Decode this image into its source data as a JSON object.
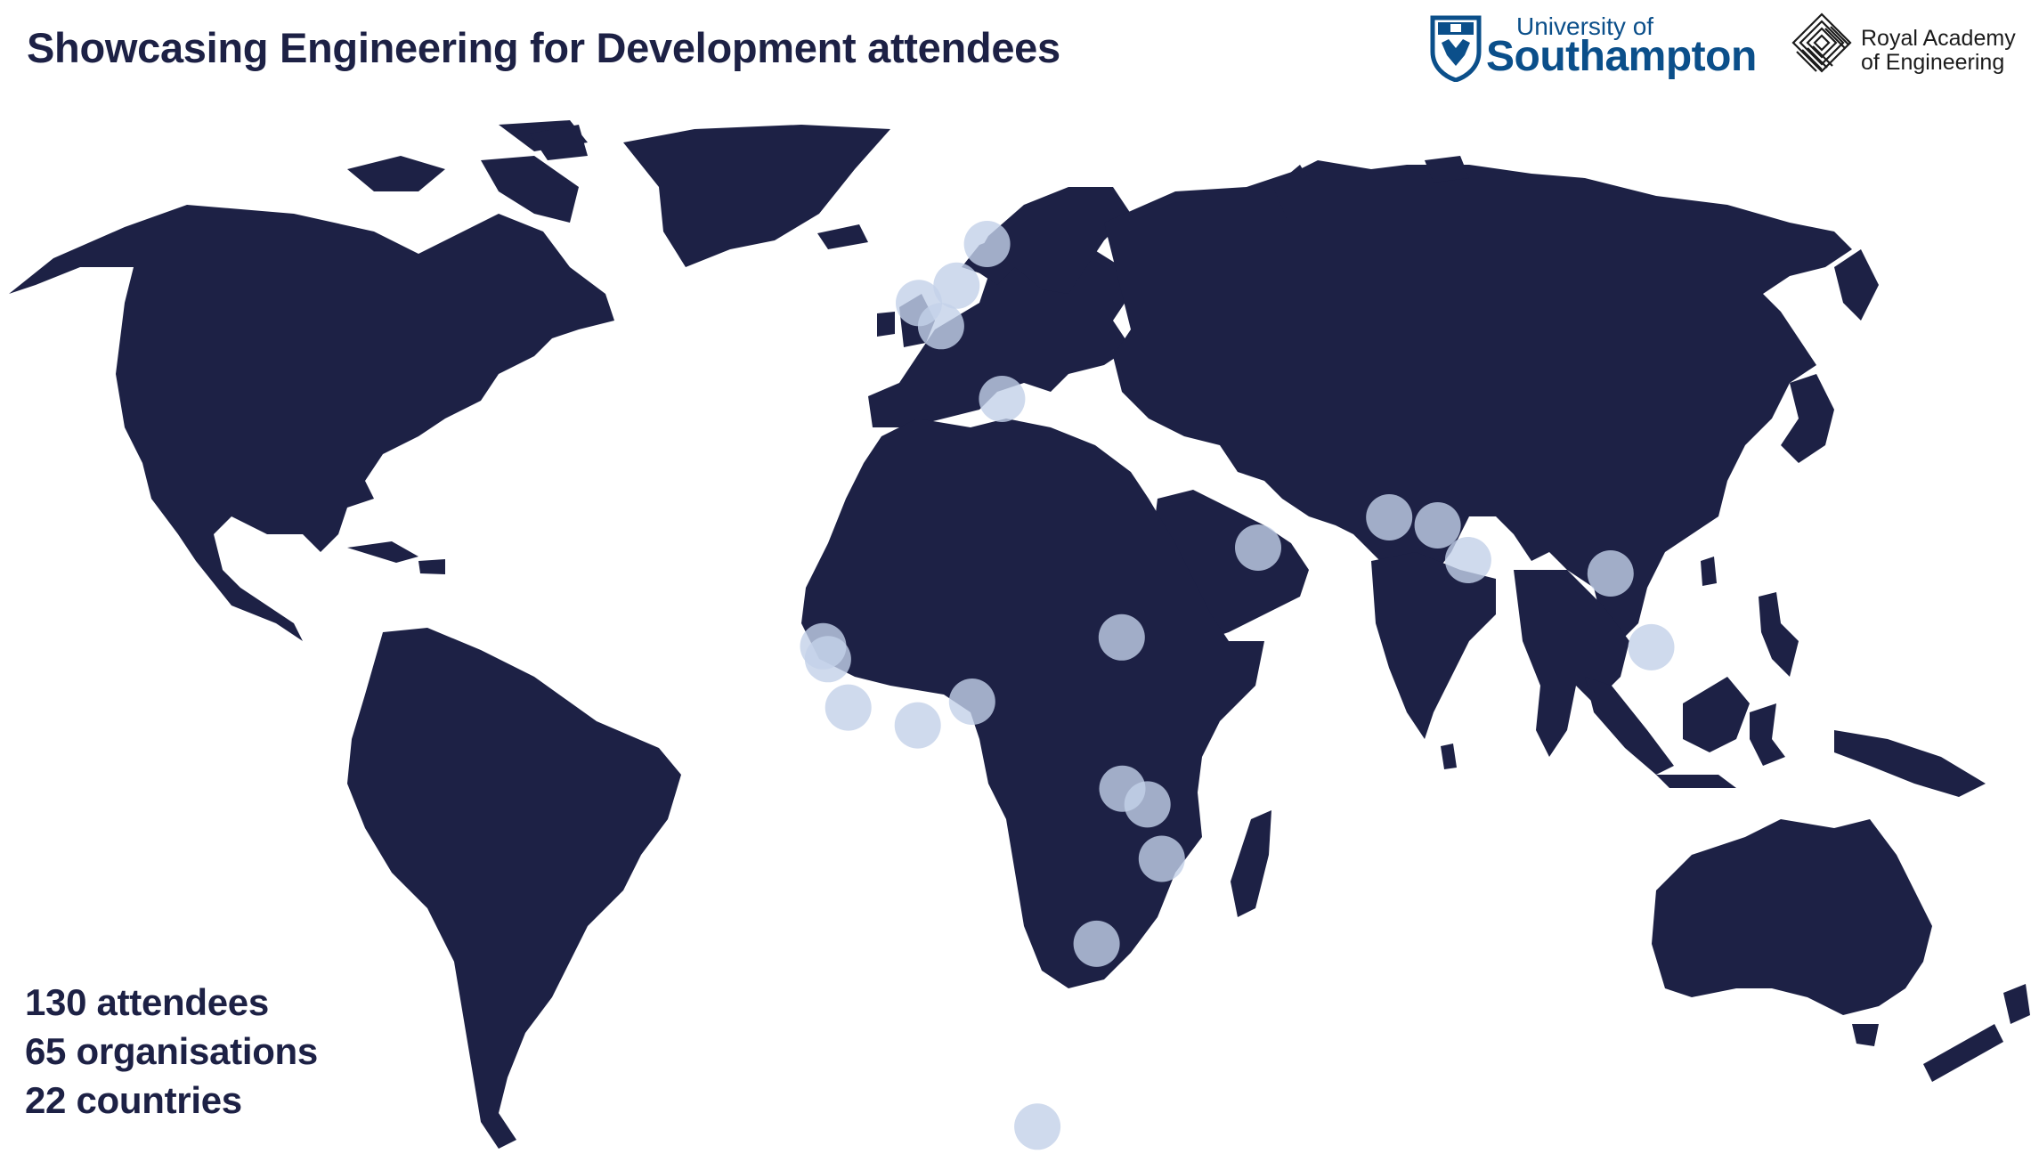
{
  "header": {
    "title": "Showcasing Engineering for Development attendees"
  },
  "logos": {
    "southampton": {
      "line1": "University of",
      "line2": "Southampton"
    },
    "royal_academy": {
      "line1": "Royal Academy",
      "line2": "of Engineering"
    }
  },
  "stats": {
    "attendees": "130 attendees",
    "organisations": "65 organisations",
    "countries": "22 countries"
  },
  "colors": {
    "land": "#1d2145",
    "marker": "#c3d1e9",
    "title": "#1d2145",
    "brand_southampton": "#0b4f8a"
  },
  "markers": [
    {
      "lon": -1.4,
      "lat": 50.9
    },
    {
      "lon": 10,
      "lat": 56
    },
    {
      "lon": 4.9,
      "lat": 52.4
    },
    {
      "lon": 2.3,
      "lat": 48.9
    },
    {
      "lon": 12.5,
      "lat": 41.9
    },
    {
      "lon": 55.3,
      "lat": 25.2
    },
    {
      "lon": 77.2,
      "lat": 28.6
    },
    {
      "lon": 85.3,
      "lat": 27.7
    },
    {
      "lon": 90.4,
      "lat": 23.8
    },
    {
      "lon": 114.2,
      "lat": 22.3
    },
    {
      "lon": 121,
      "lat": 14.6
    },
    {
      "lon": -17.4,
      "lat": 14.7
    },
    {
      "lon": -16.6,
      "lat": 13.4
    },
    {
      "lon": -13.2,
      "lat": 8.5
    },
    {
      "lon": -1.6,
      "lat": 6.7
    },
    {
      "lon": 7.5,
      "lat": 9.1
    },
    {
      "lon": 32.5,
      "lat": 15.6
    },
    {
      "lon": 32.6,
      "lat": 0.3
    },
    {
      "lon": 36.8,
      "lat": -1.3
    },
    {
      "lon": 39.2,
      "lat": -6.8
    },
    {
      "lon": 28.3,
      "lat": -15.4
    },
    {
      "lon": 18.4,
      "lat": -33.9
    }
  ]
}
